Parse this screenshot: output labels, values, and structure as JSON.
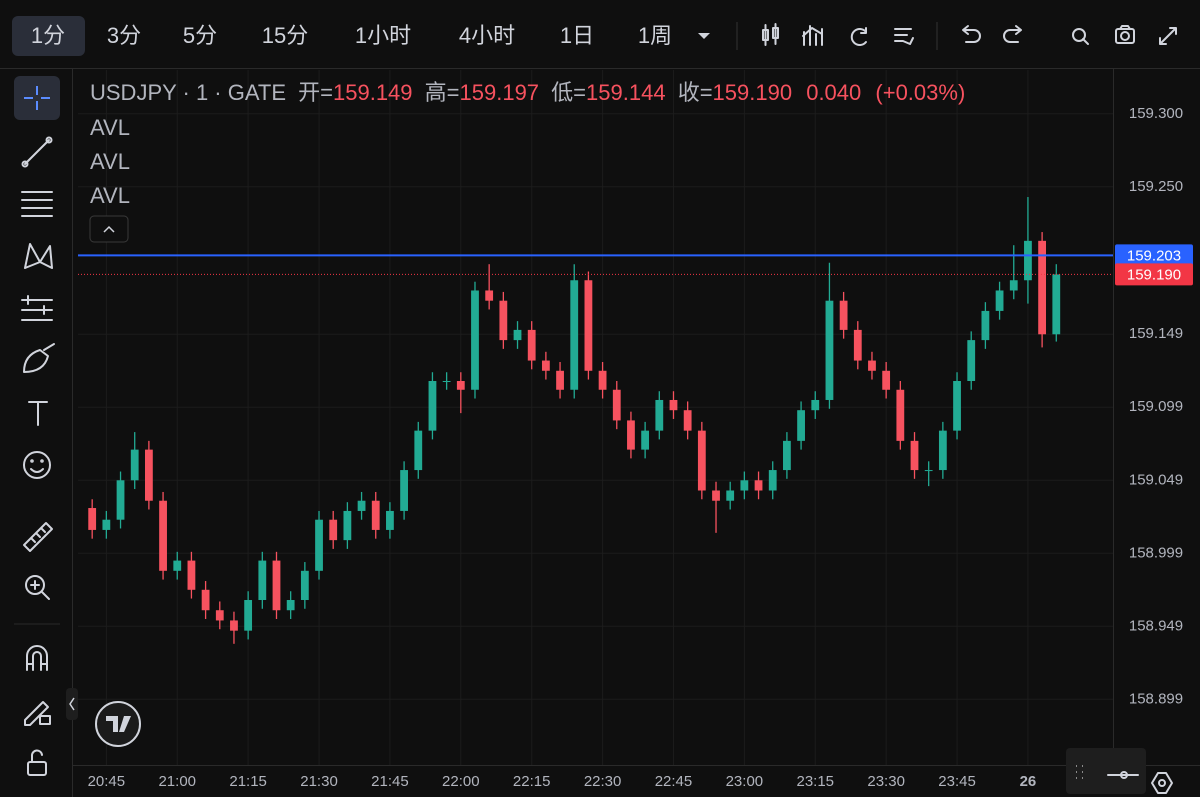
{
  "toolbar": {
    "timeframes": [
      "1分",
      "3分",
      "5分",
      "15分",
      "1小时",
      "4小时",
      "1日",
      "1周"
    ]
  },
  "legend": {
    "symbol": "USDJPY · 1 · GATE",
    "open_label": "开=",
    "open": "159.149",
    "high_label": "高=",
    "high": "159.197",
    "low_label": "低=",
    "low": "159.144",
    "close_label": "收=",
    "close": "159.190",
    "change": "0.040",
    "change_pct": "(+0.03%)"
  },
  "indicators": [
    "AVL",
    "AVL",
    "AVL"
  ],
  "chart_data": {
    "type": "candlestick",
    "x": [
      "20:42",
      "20:45",
      "20:48",
      "20:51",
      "20:54",
      "20:57",
      "21:00",
      "21:03",
      "21:06",
      "21:09",
      "21:12",
      "21:15",
      "21:18",
      "21:21",
      "21:24",
      "21:27",
      "21:30",
      "21:33",
      "21:36",
      "21:39",
      "21:42",
      "21:45",
      "21:48",
      "21:51",
      "21:54",
      "21:57",
      "22:00",
      "22:03",
      "22:06",
      "22:09",
      "22:12",
      "22:15",
      "22:18",
      "22:21",
      "22:24",
      "22:27",
      "22:30",
      "22:33",
      "22:36",
      "22:39",
      "22:42",
      "22:45",
      "22:48",
      "22:51",
      "22:54",
      "22:57",
      "23:00",
      "23:03",
      "23:06",
      "23:09",
      "23:12",
      "23:15",
      "23:18",
      "23:21",
      "23:24",
      "23:27",
      "23:30",
      "23:33",
      "23:36",
      "23:39",
      "23:42",
      "23:45",
      "23:48",
      "23:51",
      "23:54",
      "23:57",
      "00:00",
      "00:03",
      "00:06"
    ],
    "open": [
      159.03,
      159.015,
      159.022,
      159.049,
      159.07,
      159.035,
      158.987,
      158.994,
      158.974,
      158.96,
      158.953,
      158.946,
      158.967,
      158.994,
      158.96,
      158.967,
      158.987,
      159.022,
      159.008,
      159.028,
      159.035,
      159.015,
      159.028,
      159.056,
      159.083,
      159.117,
      159.117,
      159.111,
      159.179,
      159.172,
      159.145,
      159.152,
      159.131,
      159.124,
      159.111,
      159.186,
      159.124,
      159.111,
      159.09,
      159.07,
      159.083,
      159.104,
      159.097,
      159.083,
      159.042,
      159.035,
      159.042,
      159.049,
      159.042,
      159.056,
      159.076,
      159.097,
      159.104,
      159.172,
      159.152,
      159.131,
      159.124,
      159.111,
      159.076,
      159.056,
      159.056,
      159.083,
      159.117,
      159.145,
      159.165,
      159.179,
      159.186,
      159.213,
      159.149
    ],
    "high": [
      159.036,
      159.028,
      159.055,
      159.082,
      159.076,
      159.041,
      159.0,
      159.0,
      158.98,
      158.966,
      158.959,
      158.973,
      159.0,
      159.0,
      158.973,
      158.993,
      159.028,
      159.028,
      159.034,
      159.041,
      159.041,
      159.034,
      159.062,
      159.089,
      159.123,
      159.123,
      159.123,
      159.185,
      159.197,
      159.178,
      159.158,
      159.158,
      159.137,
      159.13,
      159.197,
      159.192,
      159.13,
      159.117,
      159.096,
      159.089,
      159.11,
      159.11,
      159.103,
      159.089,
      159.048,
      159.048,
      159.055,
      159.055,
      159.062,
      159.082,
      159.103,
      159.11,
      159.198,
      159.178,
      159.158,
      159.137,
      159.13,
      159.117,
      159.082,
      159.062,
      159.089,
      159.123,
      159.151,
      159.171,
      159.185,
      159.21,
      159.243,
      159.219,
      159.197
    ],
    "low": [
      159.009,
      159.009,
      159.016,
      159.043,
      159.029,
      158.981,
      158.981,
      158.968,
      158.954,
      158.947,
      158.937,
      158.94,
      158.961,
      158.954,
      158.954,
      158.961,
      158.981,
      159.002,
      159.002,
      159.022,
      159.009,
      159.009,
      159.022,
      159.05,
      159.077,
      159.111,
      159.095,
      159.105,
      159.166,
      159.139,
      159.139,
      159.125,
      159.118,
      159.105,
      159.105,
      159.118,
      159.105,
      159.084,
      159.064,
      159.064,
      159.077,
      159.091,
      159.077,
      159.036,
      159.013,
      159.029,
      159.036,
      159.036,
      159.036,
      159.05,
      159.07,
      159.091,
      159.098,
      159.146,
      159.125,
      159.118,
      159.105,
      159.07,
      159.05,
      159.045,
      159.05,
      159.077,
      159.111,
      159.139,
      159.159,
      159.173,
      159.17,
      159.14,
      159.144
    ],
    "close": [
      159.015,
      159.022,
      159.049,
      159.07,
      159.035,
      158.987,
      158.994,
      158.974,
      158.96,
      158.953,
      158.946,
      158.967,
      158.994,
      158.96,
      158.967,
      158.987,
      159.022,
      159.008,
      159.028,
      159.035,
      159.015,
      159.028,
      159.056,
      159.083,
      159.117,
      159.117,
      159.111,
      159.179,
      159.172,
      159.145,
      159.152,
      159.131,
      159.124,
      159.111,
      159.186,
      159.124,
      159.111,
      159.09,
      159.07,
      159.083,
      159.104,
      159.097,
      159.083,
      159.042,
      159.035,
      159.042,
      159.049,
      159.042,
      159.056,
      159.076,
      159.097,
      159.104,
      159.172,
      159.152,
      159.131,
      159.124,
      159.111,
      159.076,
      159.056,
      159.056,
      159.083,
      159.117,
      159.145,
      159.165,
      159.179,
      159.186,
      159.213,
      159.149,
      159.19
    ],
    "up_color": "#22ab94",
    "down_color": "#f7525f",
    "xlim": [
      "20:39",
      "00:18"
    ],
    "xticks": [
      "20:45",
      "21:00",
      "21:15",
      "21:30",
      "21:45",
      "22:00",
      "22:15",
      "22:30",
      "22:45",
      "23:00",
      "23:15",
      "23:30",
      "23:45",
      {
        "value": "00:00",
        "label": "26"
      }
    ],
    "ylim": [
      158.854,
      159.33
    ],
    "yticks": [
      {
        "value": 159.3,
        "label": "159.300"
      },
      {
        "value": 159.25,
        "label": "159.250"
      },
      {
        "value": 159.149,
        "label": "159.149"
      },
      {
        "value": 159.099,
        "label": "159.099"
      },
      {
        "value": 159.049,
        "label": "159.049"
      },
      {
        "value": 158.999,
        "label": "158.999"
      },
      {
        "value": 158.949,
        "label": "158.949"
      },
      {
        "value": 158.899,
        "label": "158.899"
      }
    ],
    "grid": true,
    "price_lines": [
      {
        "value": 159.203,
        "label": "159.203",
        "color": "#2962ff"
      },
      {
        "value": 159.19,
        "label": "159.190",
        "color": "#f23645"
      }
    ]
  }
}
